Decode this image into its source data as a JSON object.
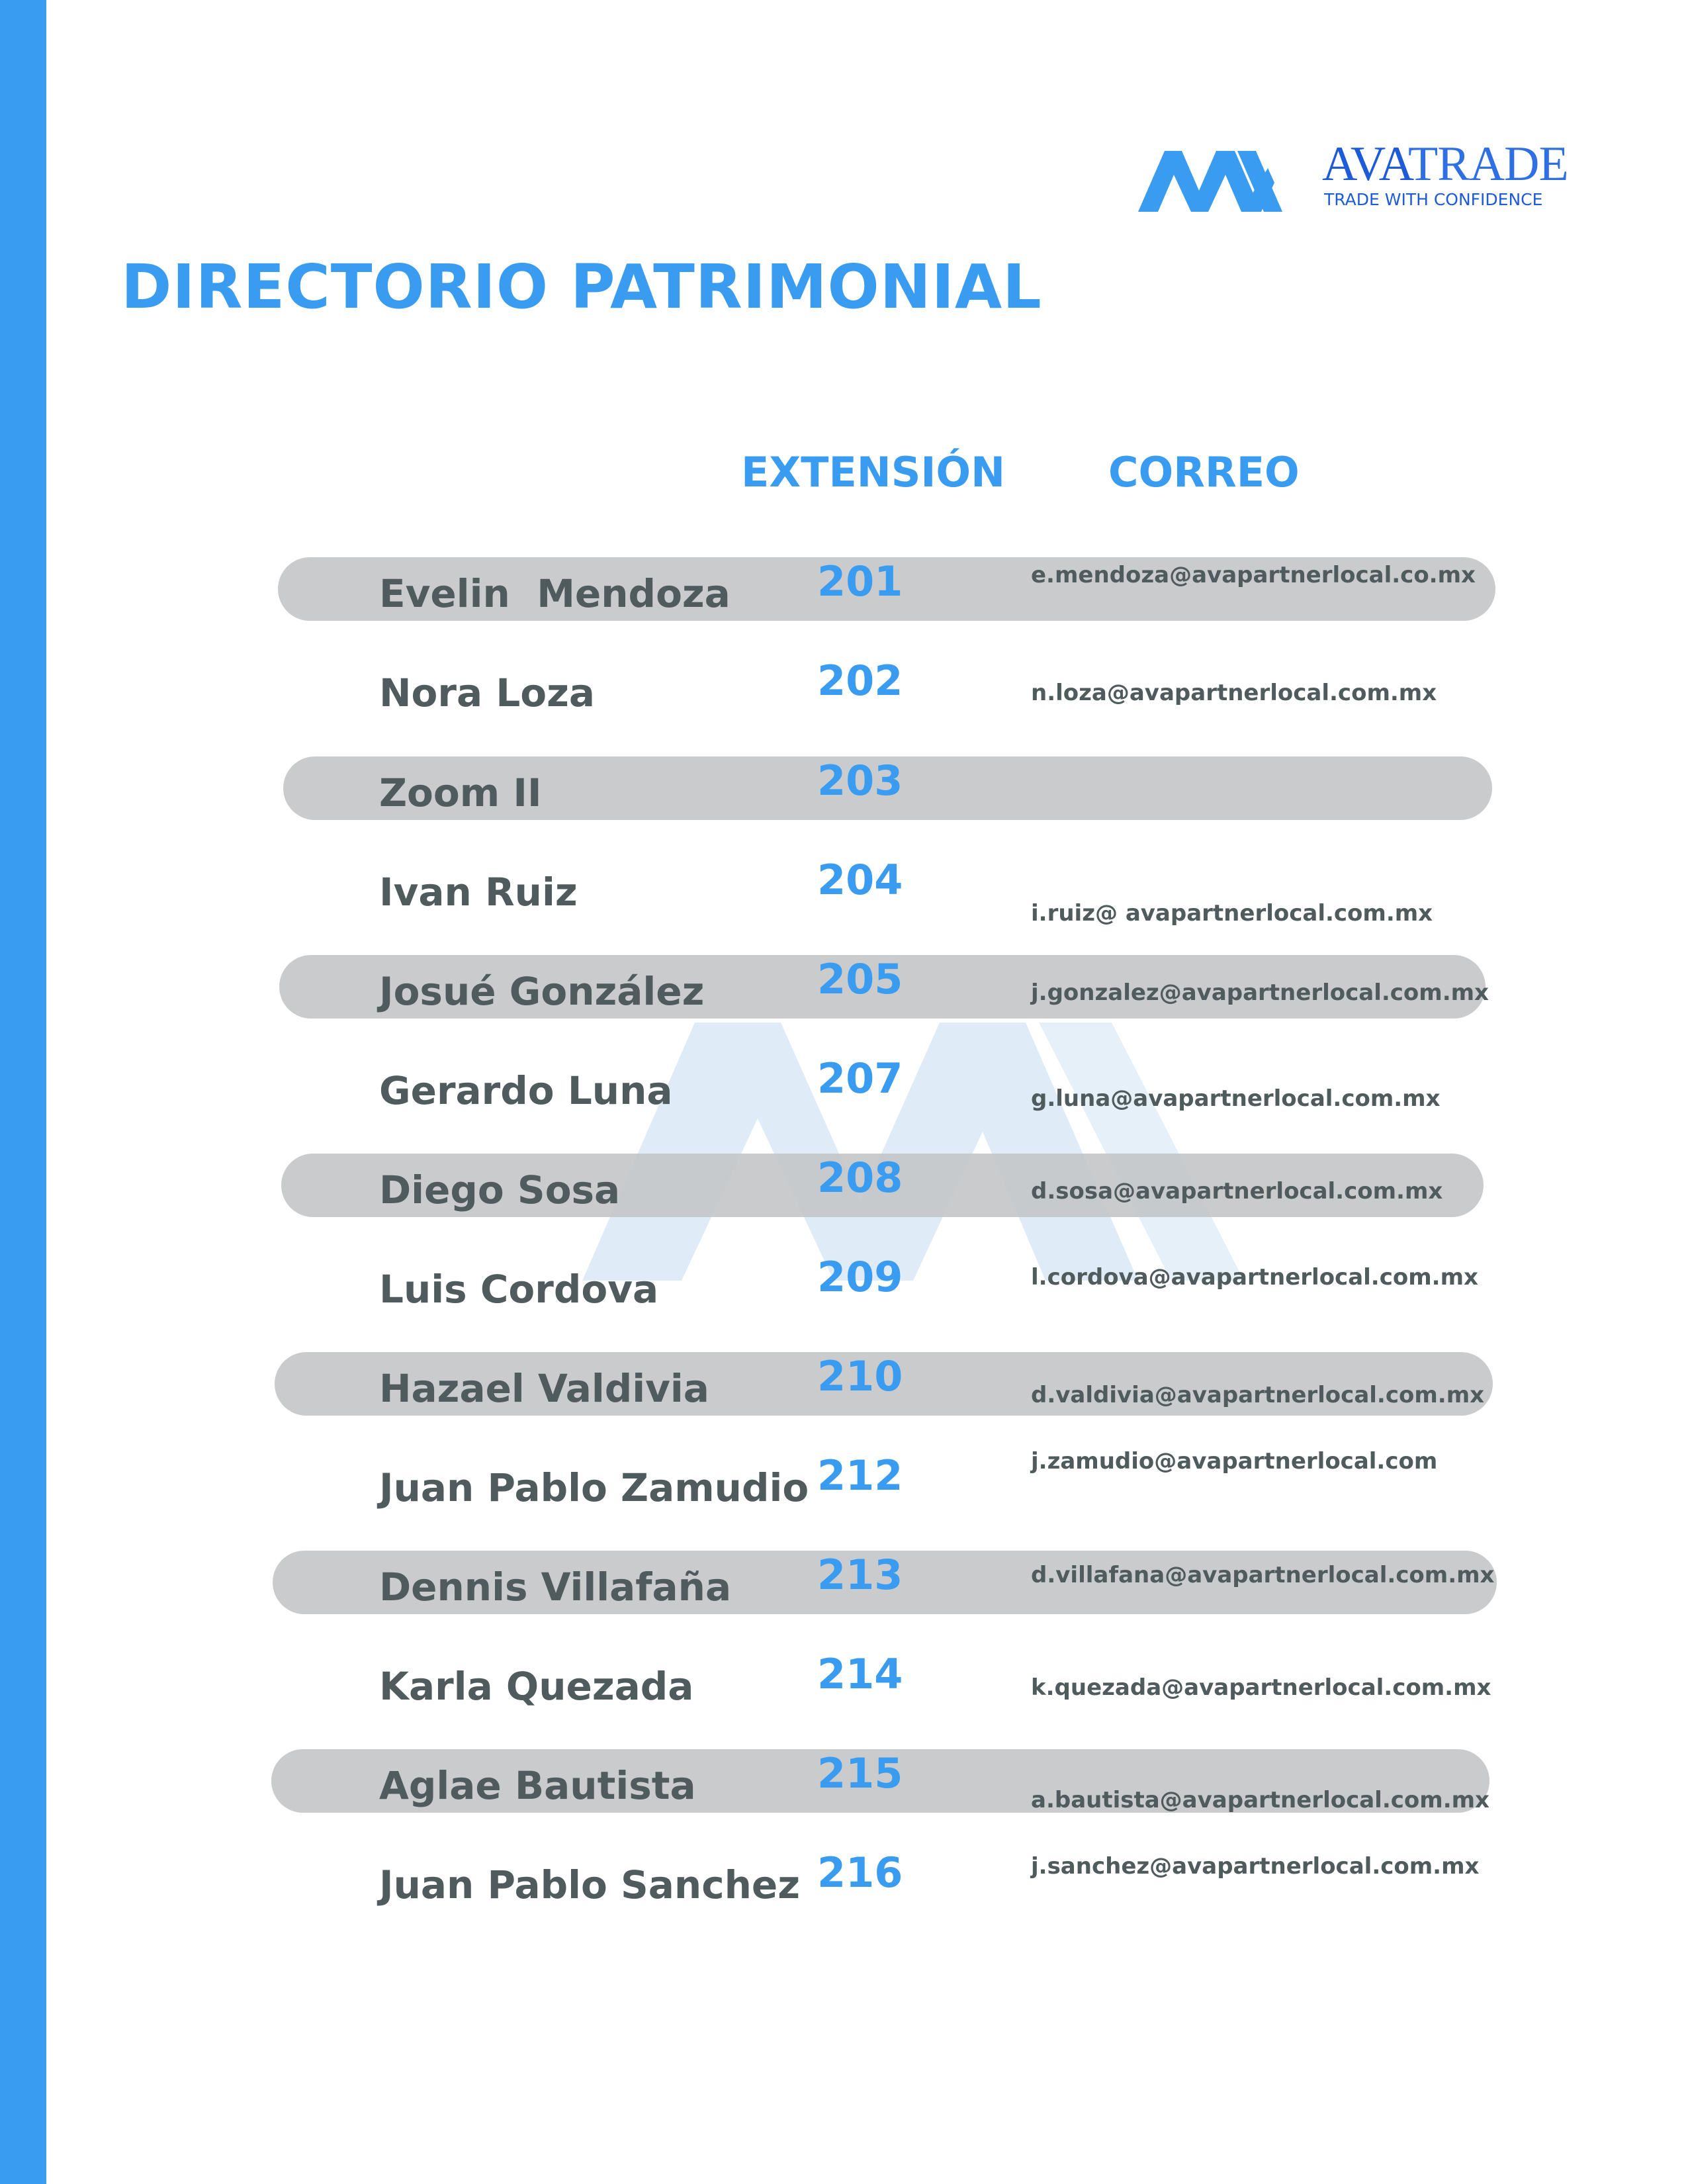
{
  "brand": {
    "name_bold": "AVA",
    "name_light": "TRADE",
    "tagline": "TRADE WITH CONFIDENCE",
    "logo_icon": "ava-logo-icon",
    "color": "#1d5bd8"
  },
  "title": "DIRECTORIO PATRIMONIAL",
  "columns": {
    "extension": "EXTENSIÓN",
    "email": "CORREO"
  },
  "colors": {
    "accent": "#3a9cf0",
    "text": "#4f5b5d",
    "row_band": "#c4c7c9"
  },
  "directory": [
    {
      "name": "Evelin  Mendoza",
      "ext": "201",
      "email": "e.mendoza@avapartnerlocal.co.mx",
      "shaded": true
    },
    {
      "name": "Nora Loza",
      "ext": "202",
      "email": "n.loza@avapartnerlocal.com.mx",
      "shaded": false
    },
    {
      "name": "Zoom II",
      "ext": "203",
      "email": "",
      "shaded": true
    },
    {
      "name": "Ivan Ruiz",
      "ext": "204",
      "email": "i.ruiz@ avapartnerlocal.com.mx",
      "shaded": false
    },
    {
      "name": "Josué González",
      "ext": "205",
      "email": "j.gonzalez@avapartnerlocal.com.mx",
      "shaded": true
    },
    {
      "name": "Gerardo Luna",
      "ext": "207",
      "email": "g.luna@avapartnerlocal.com.mx",
      "shaded": false
    },
    {
      "name": "Diego Sosa",
      "ext": "208",
      "email": "d.sosa@avapartnerlocal.com.mx",
      "shaded": true
    },
    {
      "name": "Luis Cordova",
      "ext": "209",
      "email": "l.cordova@avapartnerlocal.com.mx",
      "shaded": false
    },
    {
      "name": "Hazael Valdivia",
      "ext": "210",
      "email": "d.valdivia@avapartnerlocal.com.mx",
      "shaded": true
    },
    {
      "name": "Juan Pablo Zamudio",
      "ext": "212",
      "email": "j.zamudio@avapartnerlocal.com",
      "shaded": false
    },
    {
      "name": "Dennis Villafaña",
      "ext": "213",
      "email": "d.villafana@avapartnerlocal.com.mx",
      "shaded": true
    },
    {
      "name": "Karla Quezada",
      "ext": "214",
      "email": "k.quezada@avapartnerlocal.com.mx",
      "shaded": false
    },
    {
      "name": "Aglae Bautista",
      "ext": "215",
      "email": "a.bautista@avapartnerlocal.com.mx",
      "shaded": true
    },
    {
      "name": "Juan Pablo Sanchez",
      "ext": "216",
      "email": "j.sanchez@avapartnerlocal.com.mx",
      "shaded": false
    }
  ]
}
